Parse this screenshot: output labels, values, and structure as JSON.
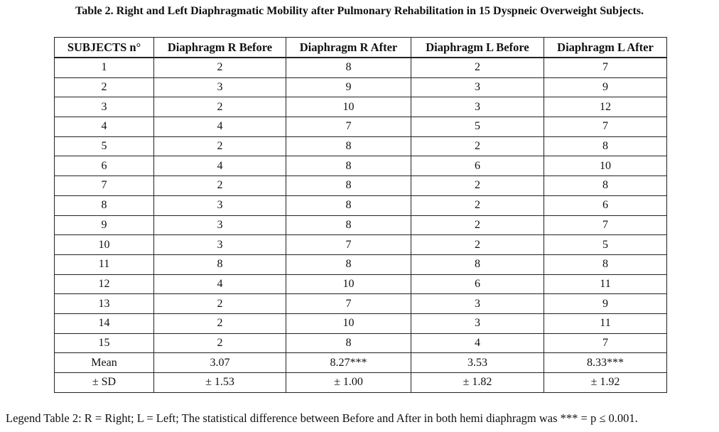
{
  "caption": "Table 2. Right and Left Diaphragmatic Mobility after Pulmonary Rehabilitation in 15 Dyspneic Overweight Subjects.",
  "columns": [
    "SUBJECTS n°",
    "Diaphragm R Before",
    "Diaphragm R After",
    "Diaphragm L Before",
    "Diaphragm L After"
  ],
  "rows": [
    [
      "1",
      "2",
      "8",
      "2",
      "7"
    ],
    [
      "2",
      "3",
      "9",
      "3",
      "9"
    ],
    [
      "3",
      "2",
      "10",
      "3",
      "12"
    ],
    [
      "4",
      "4",
      "7",
      "5",
      "7"
    ],
    [
      "5",
      "2",
      "8",
      "2",
      "8"
    ],
    [
      "6",
      "4",
      "8",
      "6",
      "10"
    ],
    [
      "7",
      "2",
      "8",
      "2",
      "8"
    ],
    [
      "8",
      "3",
      "8",
      "2",
      "6"
    ],
    [
      "9",
      "3",
      "8",
      "2",
      "7"
    ],
    [
      "10",
      "3",
      "7",
      "2",
      "5"
    ],
    [
      "11",
      "8",
      "8",
      "8",
      "8"
    ],
    [
      "12",
      "4",
      "10",
      "6",
      "11"
    ],
    [
      "13",
      "2",
      "7",
      "3",
      "9"
    ],
    [
      "14",
      "2",
      "10",
      "3",
      "11"
    ],
    [
      "15",
      "2",
      "8",
      "4",
      "7"
    ],
    [
      "Mean",
      "3.07",
      "8.27***",
      "3.53",
      "8.33***"
    ],
    [
      "± SD",
      "± 1.53",
      "± 1.00",
      "± 1.82",
      "± 1.92"
    ]
  ],
  "legend": "Legend Table 2: R = Right; L = Left; The statistical difference between Before and After in both hemi diaphragm was *** = p ≤ 0.001."
}
